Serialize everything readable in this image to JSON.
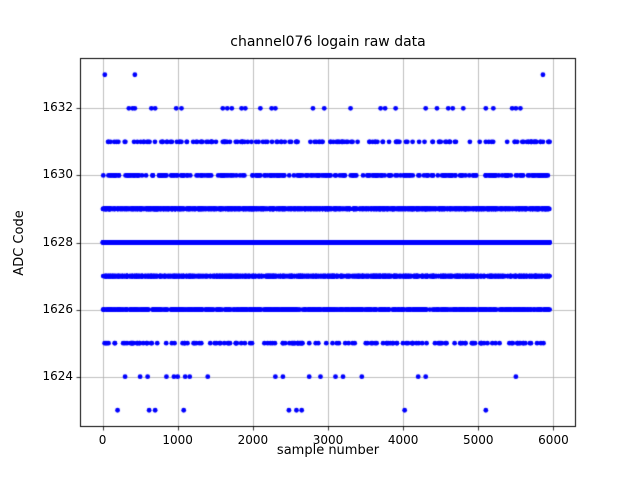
{
  "chart_data": {
    "type": "scatter",
    "title": "channel076 logain raw data",
    "xlabel": "sample number",
    "ylabel": "ADC Code",
    "xlim": [
      -300,
      6300
    ],
    "ylim": [
      1622.5,
      1633.5
    ],
    "xticks": [
      0,
      1000,
      2000,
      3000,
      4000,
      5000,
      6000
    ],
    "yticks": [
      1624,
      1626,
      1628,
      1630,
      1632
    ],
    "grid": true,
    "grid_color": "#b0b0b0",
    "axes_color": "#000000",
    "marker_color": "#0000ff",
    "marker_size": 2.4,
    "x_sample_range": [
      0,
      5950
    ],
    "levels": [
      {
        "adc": 1633,
        "x": [
          30,
          430,
          5860
        ]
      },
      {
        "adc": 1632,
        "x": [
          350,
          400,
          430,
          650,
          700,
          980,
          1050,
          1600,
          1660,
          1720,
          1850,
          1900,
          2100,
          2250,
          2300,
          2800,
          2950,
          3300,
          3700,
          3760,
          3900,
          4300,
          4450,
          4600,
          4660,
          4800,
          5100,
          5200,
          5450,
          5500,
          5560
        ]
      },
      {
        "adc": 1631,
        "count": 160
      },
      {
        "adc": 1630,
        "count": 270
      },
      {
        "adc": 1629,
        "count": 1300
      },
      {
        "adc": 1628,
        "count": 1600
      },
      {
        "adc": 1627,
        "count": 1300
      },
      {
        "adc": 1626,
        "count": 650
      },
      {
        "adc": 1625,
        "count": 150
      },
      {
        "adc": 1624,
        "x": [
          300,
          500,
          600,
          850,
          950,
          1000,
          1100,
          1160,
          1400,
          2300,
          2400,
          2750,
          2900,
          3100,
          3200,
          3450,
          4200,
          4300,
          5500
        ]
      },
      {
        "adc": 1623,
        "x": [
          200,
          620,
          700,
          1080,
          2480,
          2580,
          2650,
          4020,
          5100
        ]
      }
    ]
  }
}
